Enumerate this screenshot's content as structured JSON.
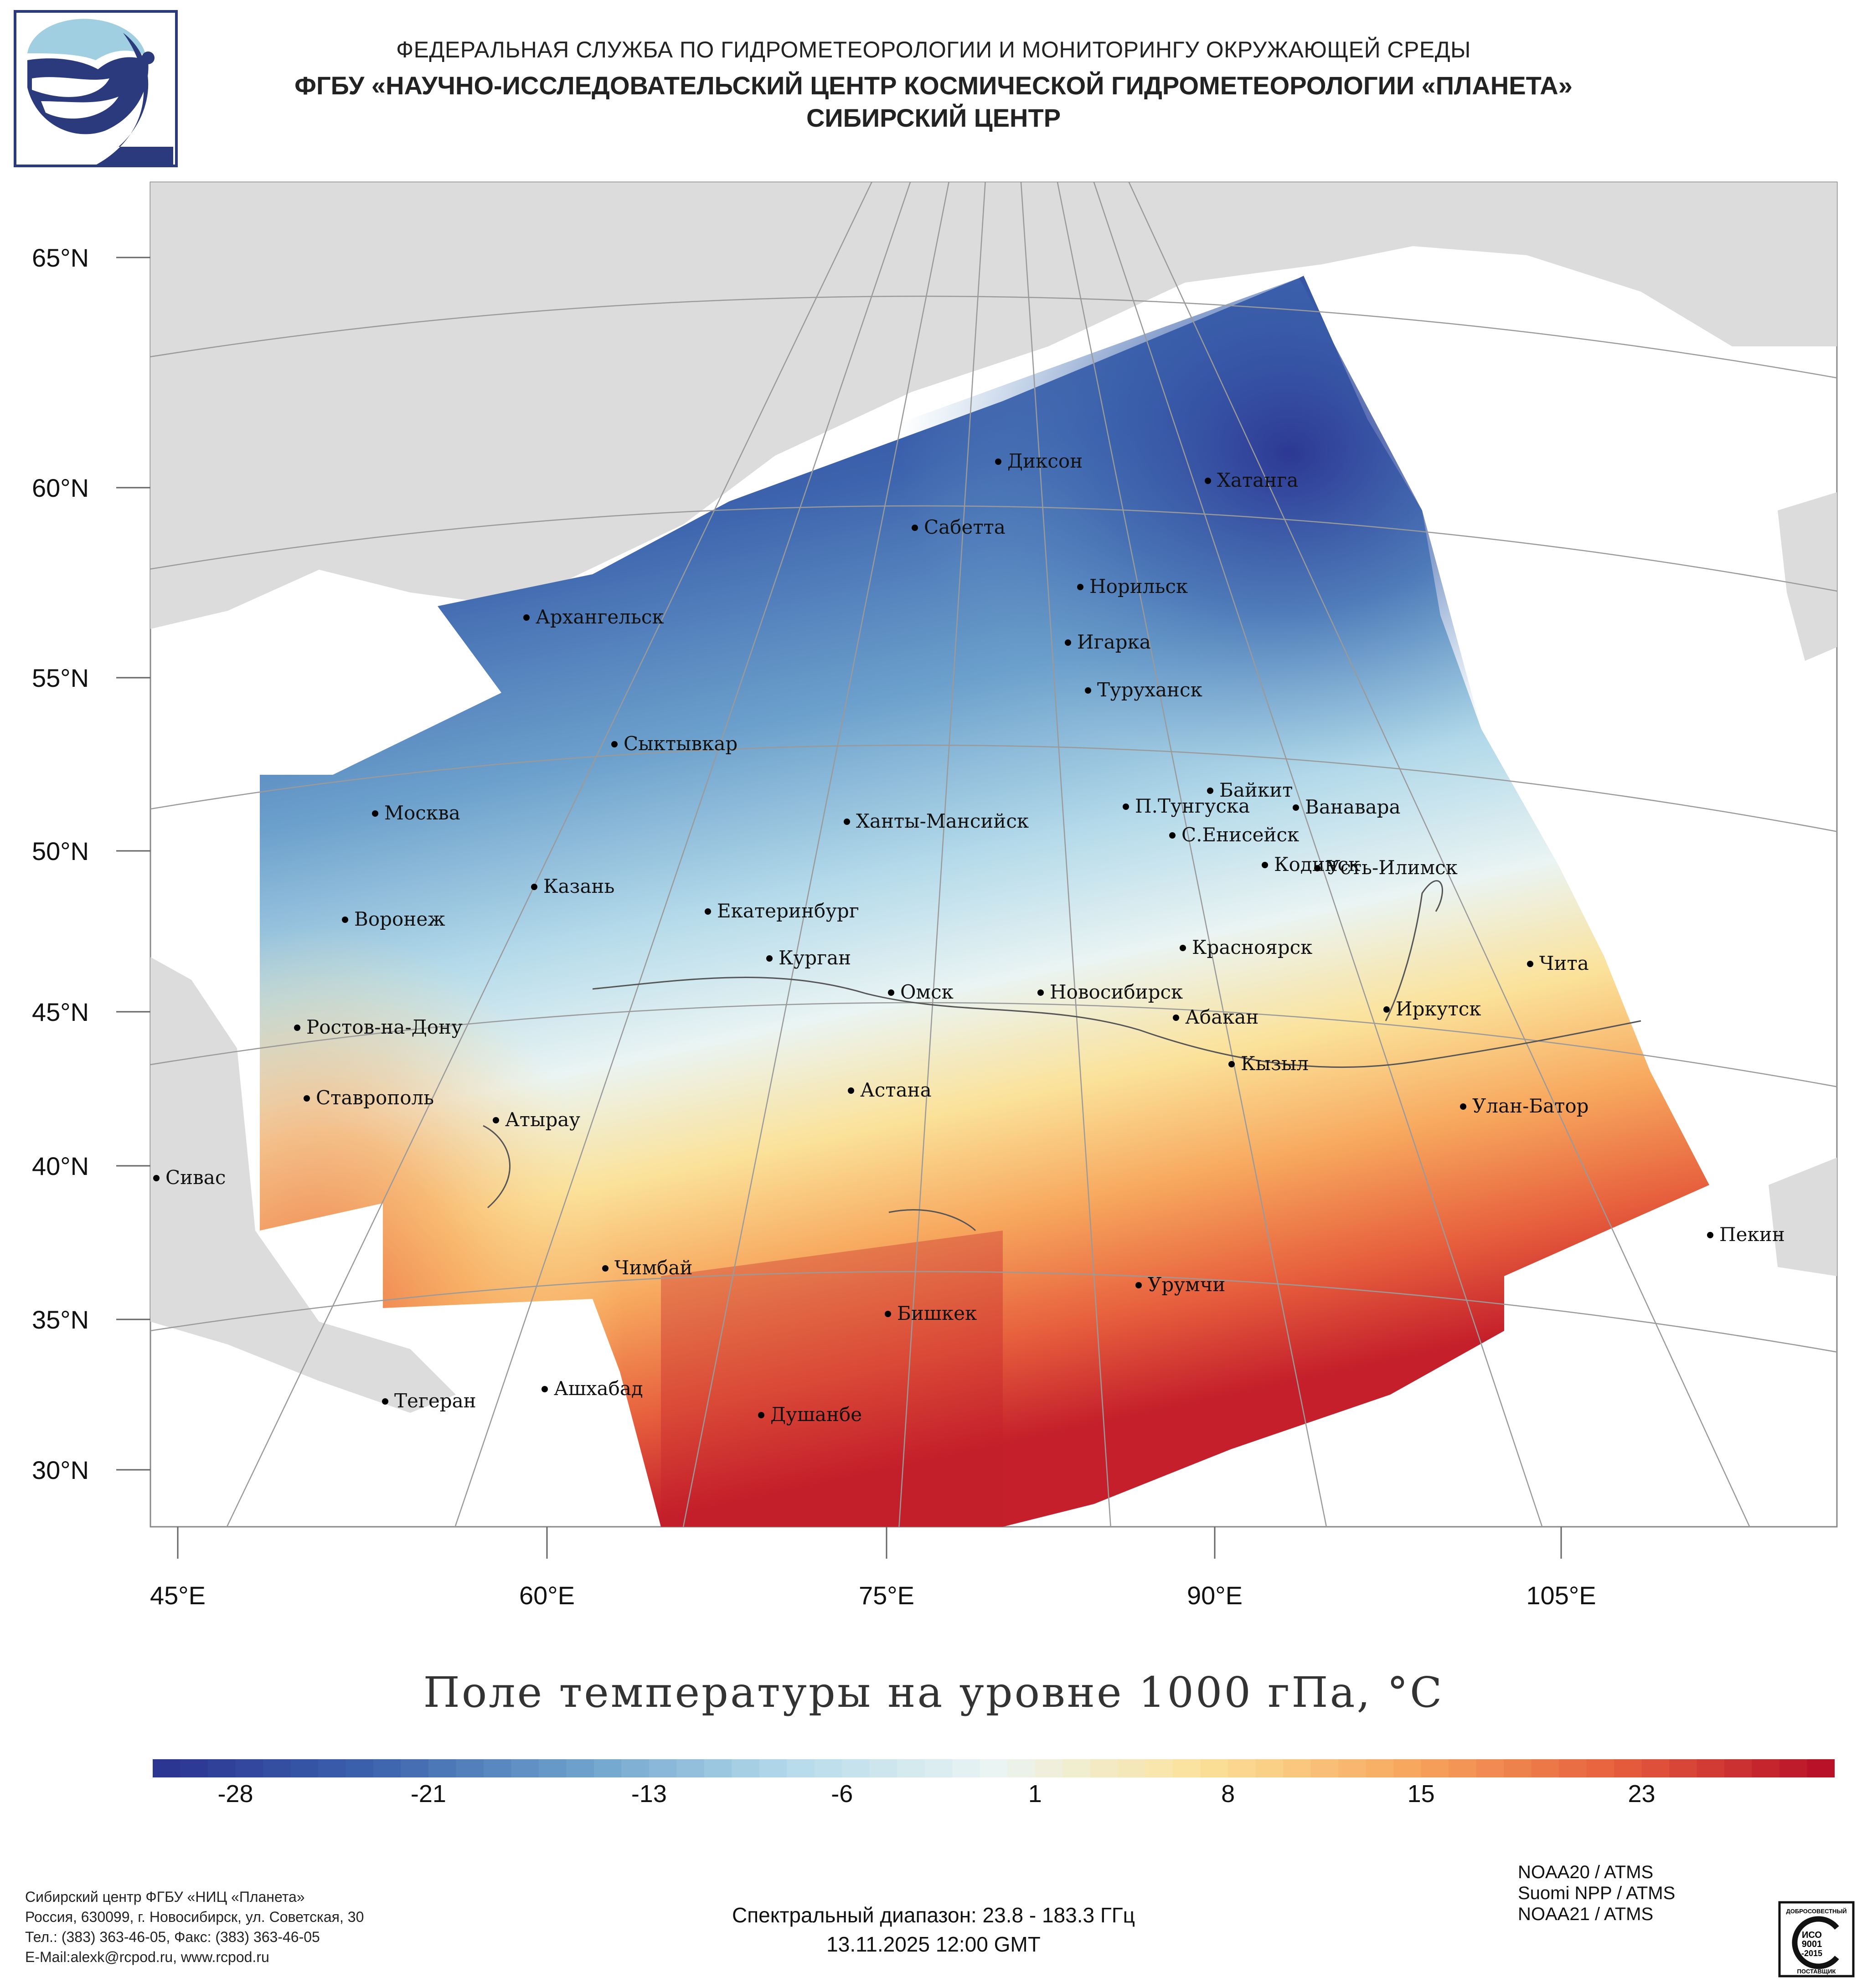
{
  "header": {
    "org": "ФЕДЕРАЛЬНАЯ СЛУЖБА ПО ГИДРОМЕТЕОРОЛОГИИ И МОНИТОРИНГУ ОКРУЖАЮЩЕЙ СРЕДЫ",
    "institute": "ФГБУ «НАУЧНО-ИССЛЕДОВАТЕЛЬСКИЙ ЦЕНТР КОСМИЧЕСКОЙ ГИДРОМЕТЕОРОЛОГИИ «ПЛАНЕТА»",
    "center": "СИБИРСКИЙ ЦЕНТР"
  },
  "logo": {
    "icon": "planeta-logo-icon",
    "color": "#2b3a7d",
    "accent": "#9fcfe0"
  },
  "map": {
    "lat_labels": [
      "65°N",
      "60°N",
      "55°N",
      "50°N",
      "45°N",
      "40°N",
      "35°N",
      "30°N"
    ],
    "lon_labels": [
      "45°E",
      "60°E",
      "75°E",
      "90°E",
      "105°E"
    ],
    "cities": [
      "Диксон",
      "Хатанга",
      "Сабетта",
      "Норильск",
      "Архангельск",
      "Игарка",
      "Туруханск",
      "Сыктывкар",
      "Байкит",
      "Москва",
      "П.Тунгуска",
      "Ванавара",
      "Ханты-Мансийск",
      "С.Енисейск",
      "Кодинск",
      "Усть-Илимск",
      "Казань",
      "Екатеринбург",
      "Воронеж",
      "Красноярск",
      "Курган",
      "Чита",
      "Омск",
      "Новосибирск",
      "Иркутск",
      "Абакан",
      "Ростов-на-Дону",
      "Кызыл",
      "Ставрополь",
      "Астана",
      "Улан-Батор",
      "Атырау",
      "Сивас",
      "Пекин",
      "Чимбай",
      "Урумчи",
      "Бишкек",
      "Ашхабад",
      "Тегеран",
      "Душанбе"
    ]
  },
  "title": "Поле температуры на уровне 1000 гПа, °C",
  "colorbar": {
    "min": -31,
    "max": 30,
    "ticks": [
      "-28",
      "-21",
      "-13",
      "-6",
      "1",
      "8",
      "15",
      "23"
    ],
    "tick_values": [
      -28,
      -21,
      -13,
      -6,
      1,
      8,
      15,
      23
    ],
    "colors": [
      "#2b3592",
      "#3c63ad",
      "#6da1cc",
      "#b4daea",
      "#eaf4f3",
      "#fbe29a",
      "#f7a85e",
      "#e7603d",
      "#b81128"
    ]
  },
  "footer": {
    "org_line1": "Сибирский центр ФГБУ «НИЦ «Планета»",
    "org_line2": "Россия, 630099, г. Новосибирск, ул. Советская, 30",
    "org_line3": "Тел.: (383) 363-46-05, Факс: (383) 363-46-05",
    "org_line4": "E-Mail:alexk@rcpod.ru, www.rcpod.ru",
    "spectral": "Спектральный диапазон: 23.8 - 183.3 ГГц",
    "datetime": "13.11.2025 12:00 GMT",
    "sensor1": "NOAA20 / ATMS",
    "sensor2": "Suomi NPP / ATMS",
    "sensor3": "NOAA21 / ATMS",
    "iso_top": "ДОБРОСОВЕСТНЫЙ",
    "iso_mid1": "ИСО",
    "iso_mid2": "9001",
    "iso_mid3": "-2015",
    "iso_bottom": "ПОСТАВЩИК"
  }
}
